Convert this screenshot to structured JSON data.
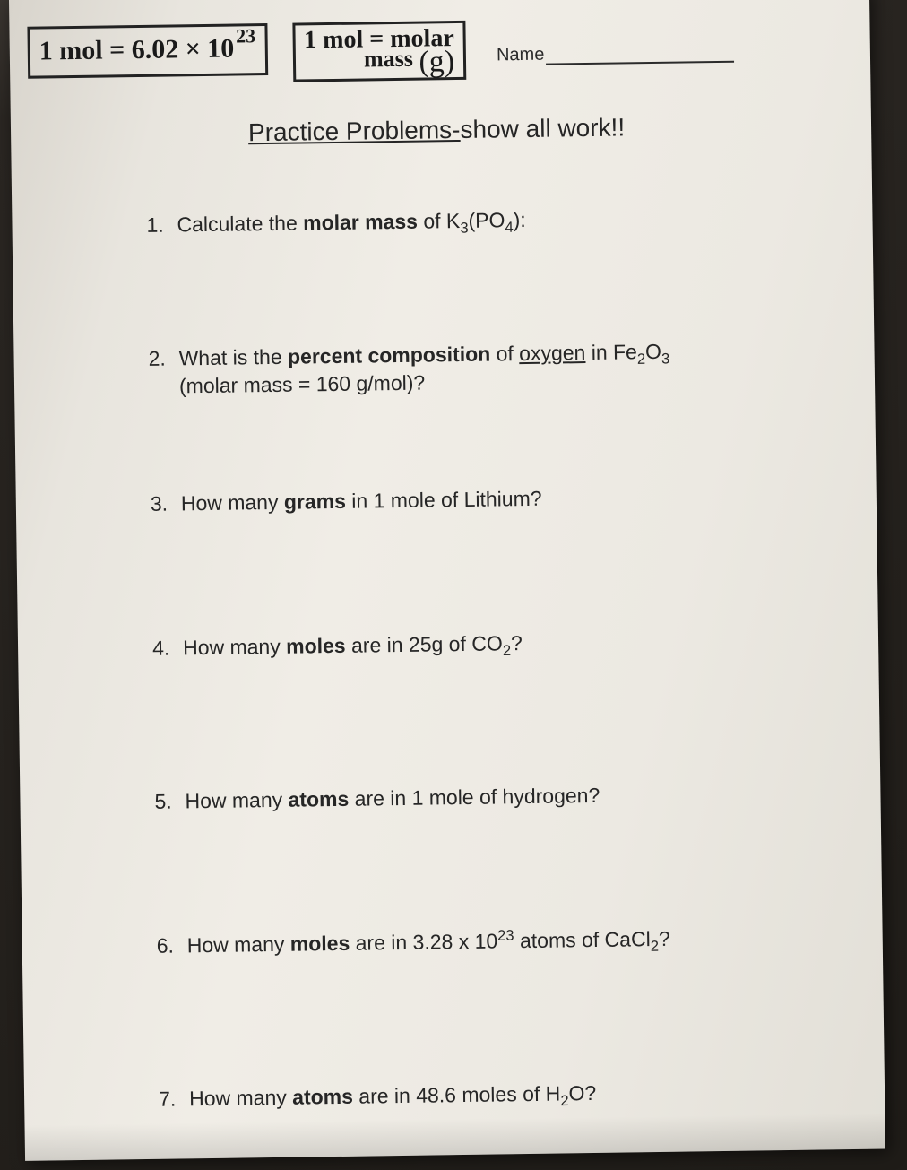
{
  "header": {
    "box1_text": "1 mol = 6.02 × 10",
    "box1_exp": "23",
    "box2_line1": "1 mol = molar",
    "box2_line2_pre": "mass ",
    "box2_line2_paren": "(g)",
    "name_label": "Name"
  },
  "title": {
    "underlined": "Practice Problems-",
    "rest": "show all work!!"
  },
  "problems": [
    {
      "n": "1.",
      "html": "Calculate the <b>molar mass</b> of K<sub>3</sub>(PO<sub>4</sub>):"
    },
    {
      "n": "2.",
      "html": "What is the <b>percent composition</b> of <span class='u'>oxygen</span> in Fe<sub>2</sub>O<sub>3</sub><br>(molar mass = 160 g/mol)?"
    },
    {
      "n": "3.",
      "html": "How many <b>grams</b> in 1 mole of Lithium?"
    },
    {
      "n": "4.",
      "html": "How many <b>moles</b> are in 25g of CO<sub>2</sub>?"
    },
    {
      "n": "5.",
      "html": "How many <b>atoms</b> are in 1 mole of hydrogen?"
    },
    {
      "n": "6.",
      "html": "How many <b>moles</b> are in 3.28 x 10<sup>23</sup> atoms of CaCl<sub>2</sub>?"
    },
    {
      "n": "7.",
      "html": "How many <b>atoms</b> are in 48.6 moles of H<sub>2</sub>O?"
    }
  ],
  "style": {
    "paper_bg": "#ece9e2",
    "text_color": "#2b2b2b",
    "handwriting_color": "#1a1a1a",
    "border_color": "#222222",
    "heading_fontsize": 28,
    "problem_fontsize": 23,
    "handwriting_font": "Comic Sans MS"
  }
}
